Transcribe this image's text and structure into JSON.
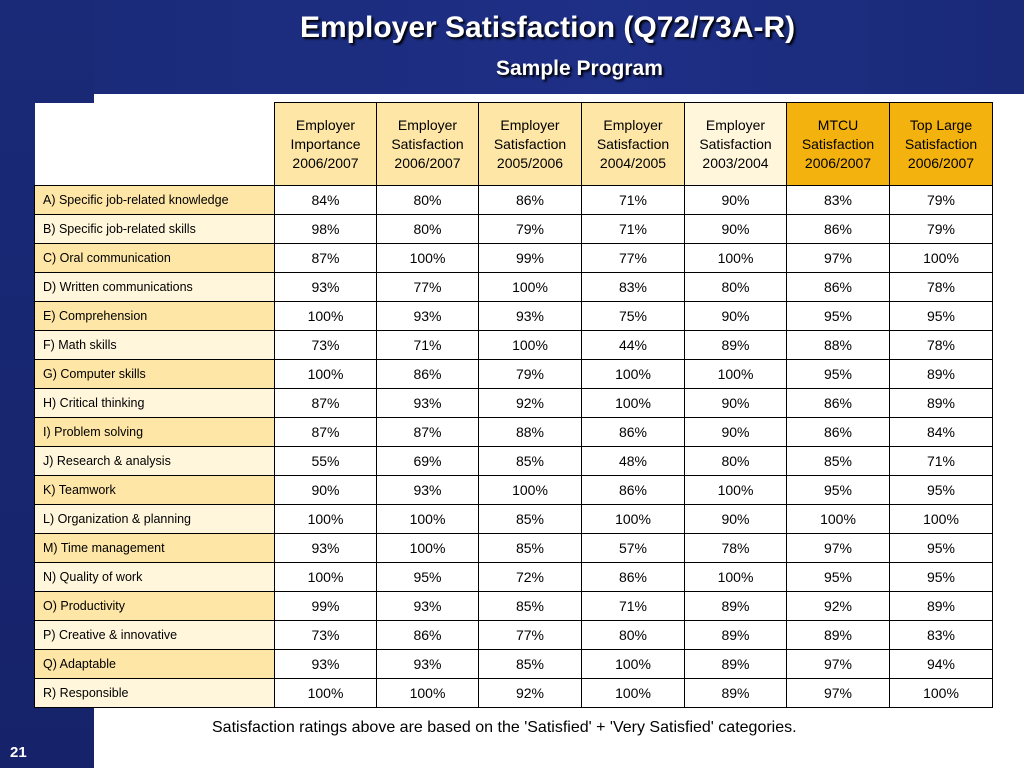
{
  "slide": {
    "title": "Employer Satisfaction (Q72/73A-R)",
    "subtitle": "Sample Program",
    "number": "21",
    "footnote": "Satisfaction ratings above are based on the 'Satisfied' + 'Very Satisfied' categories.",
    "colors": {
      "band": "#1a2a78",
      "header_gold": "#f4b20f",
      "header_light": "#fde6a6",
      "header_pale": "#fff6dc"
    }
  },
  "table": {
    "columns": [
      {
        "l1": "Employer",
        "l2": "Importance",
        "l3": "2006/2007"
      },
      {
        "l1": "Employer",
        "l2": "Satisfaction",
        "l3": "2006/2007"
      },
      {
        "l1": "Employer",
        "l2": "Satisfaction",
        "l3": "2005/2006"
      },
      {
        "l1": "Employer",
        "l2": "Satisfaction",
        "l3": "2004/2005"
      },
      {
        "l1": "Employer",
        "l2": "Satisfaction",
        "l3": "2003/2004"
      },
      {
        "l1": "MTCU",
        "l2": "Satisfaction",
        "l3": "2006/2007"
      },
      {
        "l1": "Top Large",
        "l2": "Satisfaction",
        "l3": "2006/2007"
      }
    ],
    "rows": [
      {
        "label": "A) Specific job-related knowledge",
        "values": [
          "84%",
          "80%",
          "86%",
          "71%",
          "90%",
          "83%",
          "79%"
        ]
      },
      {
        "label": "B) Specific job-related skills",
        "values": [
          "98%",
          "80%",
          "79%",
          "71%",
          "90%",
          "86%",
          "79%"
        ]
      },
      {
        "label": "C) Oral communication",
        "values": [
          "87%",
          "100%",
          "99%",
          "77%",
          "100%",
          "97%",
          "100%"
        ]
      },
      {
        "label": "D) Written communications",
        "values": [
          "93%",
          "77%",
          "100%",
          "83%",
          "80%",
          "86%",
          "78%"
        ]
      },
      {
        "label": "E) Comprehension",
        "values": [
          "100%",
          "93%",
          "93%",
          "75%",
          "90%",
          "95%",
          "95%"
        ]
      },
      {
        "label": "F) Math skills",
        "values": [
          "73%",
          "71%",
          "100%",
          "44%",
          "89%",
          "88%",
          "78%"
        ]
      },
      {
        "label": "G) Computer skills",
        "values": [
          "100%",
          "86%",
          "79%",
          "100%",
          "100%",
          "95%",
          "89%"
        ]
      },
      {
        "label": "H) Critical thinking",
        "values": [
          "87%",
          "93%",
          "92%",
          "100%",
          "90%",
          "86%",
          "89%"
        ]
      },
      {
        "label": "I) Problem solving",
        "values": [
          "87%",
          "87%",
          "88%",
          "86%",
          "90%",
          "86%",
          "84%"
        ]
      },
      {
        "label": "J) Research & analysis",
        "values": [
          "55%",
          "69%",
          "85%",
          "48%",
          "80%",
          "85%",
          "71%"
        ]
      },
      {
        "label": "K) Teamwork",
        "values": [
          "90%",
          "93%",
          "100%",
          "86%",
          "100%",
          "95%",
          "95%"
        ]
      },
      {
        "label": "L) Organization & planning",
        "values": [
          "100%",
          "100%",
          "85%",
          "100%",
          "90%",
          "100%",
          "100%"
        ]
      },
      {
        "label": "M) Time management",
        "values": [
          "93%",
          "100%",
          "85%",
          "57%",
          "78%",
          "97%",
          "95%"
        ]
      },
      {
        "label": "N) Quality of work",
        "values": [
          "100%",
          "95%",
          "72%",
          "86%",
          "100%",
          "95%",
          "95%"
        ]
      },
      {
        "label": "O) Productivity",
        "values": [
          "99%",
          "93%",
          "85%",
          "71%",
          "89%",
          "92%",
          "89%"
        ]
      },
      {
        "label": "P) Creative & innovative",
        "values": [
          "73%",
          "86%",
          "77%",
          "80%",
          "89%",
          "89%",
          "83%"
        ]
      },
      {
        "label": "Q) Adaptable",
        "values": [
          "93%",
          "93%",
          "85%",
          "100%",
          "89%",
          "97%",
          "94%"
        ]
      },
      {
        "label": "R) Responsible",
        "values": [
          "100%",
          "100%",
          "92%",
          "100%",
          "89%",
          "97%",
          "100%"
        ]
      }
    ]
  }
}
